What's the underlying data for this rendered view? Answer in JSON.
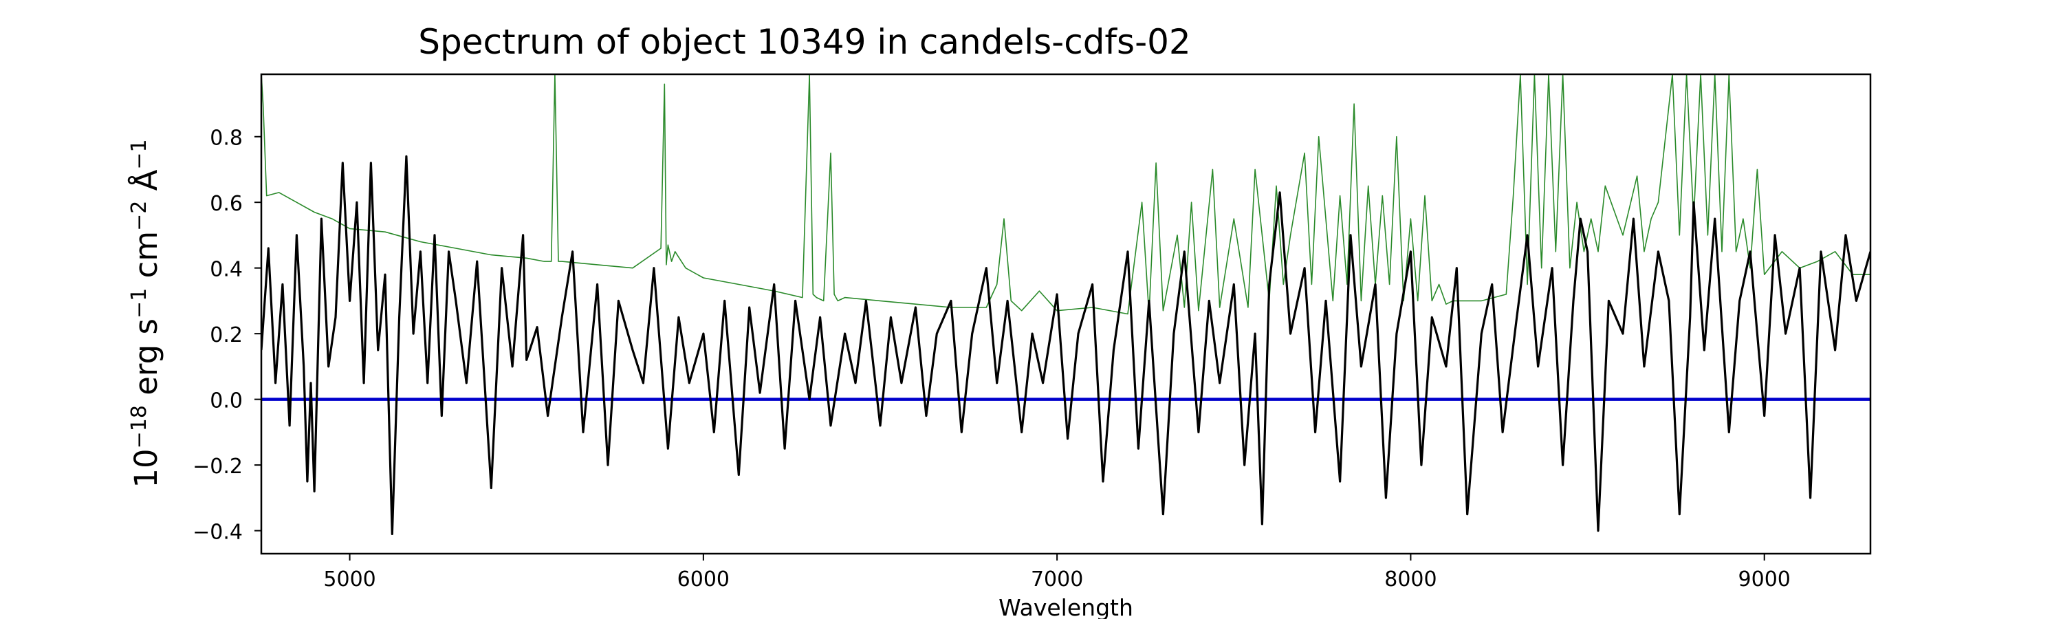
{
  "chart_data": {
    "type": "line",
    "title": "Spectrum of object 10349 in candels-cdfs-02",
    "xlabel": "Wavelength",
    "ylabel": {
      "base": "10",
      "base_exp": "−18",
      "unit1": " erg s",
      "unit1_exp": "−1",
      "unit2": " cm",
      "unit2_exp": "−2",
      "unit3": " Å",
      "unit3_exp": "−1"
    },
    "xlim": [
      4750,
      9300
    ],
    "ylim": [
      -0.47,
      0.99
    ],
    "xticks": [
      5000,
      6000,
      7000,
      8000,
      9000
    ],
    "xtick_labels": [
      "5000",
      "6000",
      "7000",
      "8000",
      "9000"
    ],
    "yticks": [
      -0.4,
      -0.2,
      0.0,
      0.2,
      0.4,
      0.6,
      0.8
    ],
    "ytick_labels": [
      "−0.4",
      "−0.2",
      "0.0",
      "0.2",
      "0.4",
      "0.6",
      "0.8"
    ],
    "grid": false,
    "legend": "none",
    "colors": {
      "flux": "#000000",
      "error": "#2a8a2a",
      "zero": "#0000cc"
    },
    "series": [
      {
        "key": "flux",
        "x": [
          4750,
          4770,
          4790,
          4810,
          4830,
          4850,
          4870,
          4880,
          4890,
          4900,
          4920,
          4940,
          4960,
          4980,
          5000,
          5020,
          5040,
          5060,
          5080,
          5100,
          5120,
          5140,
          5160,
          5180,
          5200,
          5220,
          5240,
          5260,
          5280,
          5300,
          5330,
          5360,
          5400,
          5430,
          5460,
          5490,
          5500,
          5530,
          5560,
          5600,
          5630,
          5660,
          5700,
          5730,
          5760,
          5800,
          5830,
          5860,
          5900,
          5930,
          5960,
          6000,
          6030,
          6060,
          6100,
          6130,
          6160,
          6200,
          6230,
          6260,
          6300,
          6330,
          6360,
          6400,
          6430,
          6460,
          6500,
          6530,
          6560,
          6600,
          6630,
          6660,
          6700,
          6730,
          6760,
          6800,
          6830,
          6860,
          6900,
          6930,
          6960,
          7000,
          7030,
          7060,
          7100,
          7130,
          7160,
          7200,
          7230,
          7260,
          7300,
          7330,
          7360,
          7400,
          7430,
          7460,
          7500,
          7530,
          7560,
          7580,
          7600,
          7630,
          7660,
          7700,
          7730,
          7760,
          7800,
          7830,
          7860,
          7900,
          7930,
          7960,
          8000,
          8030,
          8060,
          8100,
          8130,
          8160,
          8200,
          8230,
          8260,
          8300,
          8330,
          8360,
          8400,
          8430,
          8460,
          8480,
          8500,
          8530,
          8560,
          8600,
          8630,
          8660,
          8700,
          8730,
          8760,
          8790,
          8800,
          8830,
          8860,
          8900,
          8930,
          8960,
          9000,
          9030,
          9060,
          9100,
          9130,
          9160,
          9200,
          9230,
          9260,
          9300
        ],
        "y": [
          0.15,
          0.46,
          0.05,
          0.35,
          -0.08,
          0.5,
          0.1,
          -0.25,
          0.05,
          -0.28,
          0.55,
          0.1,
          0.25,
          0.72,
          0.3,
          0.6,
          0.05,
          0.72,
          0.15,
          0.38,
          -0.41,
          0.25,
          0.74,
          0.2,
          0.45,
          0.05,
          0.5,
          -0.05,
          0.45,
          0.3,
          0.05,
          0.42,
          -0.27,
          0.4,
          0.1,
          0.5,
          0.12,
          0.22,
          -0.05,
          0.25,
          0.45,
          -0.1,
          0.35,
          -0.2,
          0.3,
          0.15,
          0.05,
          0.4,
          -0.15,
          0.25,
          0.05,
          0.2,
          -0.1,
          0.3,
          -0.23,
          0.28,
          0.02,
          0.35,
          -0.15,
          0.3,
          0.0,
          0.25,
          -0.08,
          0.2,
          0.05,
          0.3,
          -0.08,
          0.25,
          0.05,
          0.28,
          -0.05,
          0.2,
          0.3,
          -0.1,
          0.2,
          0.4,
          0.05,
          0.3,
          -0.1,
          0.2,
          0.05,
          0.32,
          -0.12,
          0.2,
          0.35,
          -0.25,
          0.15,
          0.45,
          -0.15,
          0.3,
          -0.35,
          0.2,
          0.45,
          -0.1,
          0.3,
          0.05,
          0.35,
          -0.2,
          0.2,
          -0.38,
          0.35,
          0.63,
          0.2,
          0.4,
          -0.1,
          0.3,
          -0.25,
          0.5,
          0.1,
          0.35,
          -0.3,
          0.2,
          0.45,
          -0.2,
          0.25,
          0.1,
          0.4,
          -0.35,
          0.2,
          0.35,
          -0.1,
          0.25,
          0.5,
          0.1,
          0.4,
          -0.2,
          0.3,
          0.55,
          0.45,
          -0.4,
          0.3,
          0.2,
          0.55,
          0.1,
          0.45,
          0.3,
          -0.35,
          0.25,
          0.6,
          0.15,
          0.55,
          -0.1,
          0.3,
          0.45,
          -0.05,
          0.5,
          0.2,
          0.4,
          -0.3,
          0.45,
          0.15,
          0.5,
          0.3,
          0.45
        ]
      },
      {
        "key": "error",
        "x": [
          4750,
          4755,
          4765,
          4800,
          4850,
          4900,
          4950,
          5000,
          5100,
          5200,
          5300,
          5400,
          5500,
          5550,
          5570,
          5580,
          5590,
          5600,
          5700,
          5800,
          5880,
          5890,
          5895,
          5900,
          5910,
          5920,
          5950,
          6000,
          6100,
          6200,
          6280,
          6300,
          6310,
          6320,
          6340,
          6360,
          6370,
          6380,
          6400,
          6500,
          6600,
          6700,
          6800,
          6830,
          6850,
          6870,
          6900,
          6950,
          7000,
          7100,
          7200,
          7240,
          7260,
          7280,
          7300,
          7340,
          7360,
          7380,
          7400,
          7440,
          7460,
          7500,
          7540,
          7560,
          7600,
          7620,
          7640,
          7660,
          7700,
          7720,
          7740,
          7780,
          7800,
          7820,
          7840,
          7860,
          7880,
          7900,
          7920,
          7940,
          7960,
          7980,
          8000,
          8020,
          8040,
          8060,
          8080,
          8100,
          8120,
          8200,
          8270,
          8290,
          8310,
          8330,
          8350,
          8370,
          8390,
          8410,
          8430,
          8450,
          8470,
          8490,
          8510,
          8530,
          8550,
          8600,
          8640,
          8660,
          8680,
          8700,
          8740,
          8760,
          8780,
          8800,
          8820,
          8840,
          8860,
          8880,
          8900,
          8920,
          8940,
          8960,
          8980,
          9000,
          9050,
          9100,
          9150,
          9200,
          9250,
          9300
        ],
        "y": [
          0.99,
          0.9,
          0.62,
          0.63,
          0.6,
          0.57,
          0.55,
          0.52,
          0.51,
          0.48,
          0.46,
          0.44,
          0.43,
          0.42,
          0.42,
          0.99,
          0.42,
          0.42,
          0.41,
          0.4,
          0.46,
          0.96,
          0.41,
          0.47,
          0.42,
          0.45,
          0.4,
          0.37,
          0.35,
          0.33,
          0.31,
          0.99,
          0.32,
          0.31,
          0.3,
          0.75,
          0.32,
          0.3,
          0.31,
          0.3,
          0.29,
          0.28,
          0.28,
          0.35,
          0.55,
          0.3,
          0.27,
          0.33,
          0.27,
          0.28,
          0.26,
          0.6,
          0.26,
          0.72,
          0.27,
          0.5,
          0.28,
          0.6,
          0.27,
          0.7,
          0.28,
          0.55,
          0.28,
          0.7,
          0.3,
          0.65,
          0.35,
          0.5,
          0.75,
          0.35,
          0.8,
          0.3,
          0.62,
          0.35,
          0.9,
          0.3,
          0.65,
          0.35,
          0.62,
          0.35,
          0.8,
          0.3,
          0.55,
          0.3,
          0.62,
          0.3,
          0.35,
          0.29,
          0.3,
          0.3,
          0.32,
          0.62,
          0.99,
          0.35,
          0.99,
          0.4,
          0.99,
          0.45,
          0.99,
          0.4,
          0.6,
          0.45,
          0.55,
          0.45,
          0.65,
          0.5,
          0.68,
          0.45,
          0.55,
          0.6,
          0.99,
          0.5,
          0.99,
          0.55,
          0.99,
          0.5,
          0.99,
          0.45,
          0.99,
          0.45,
          0.55,
          0.4,
          0.7,
          0.38,
          0.45,
          0.4,
          0.42,
          0.45,
          0.38,
          0.38
        ]
      },
      {
        "key": "zero",
        "x": [
          4750,
          9300
        ],
        "y": [
          0.0,
          0.0
        ]
      }
    ]
  }
}
